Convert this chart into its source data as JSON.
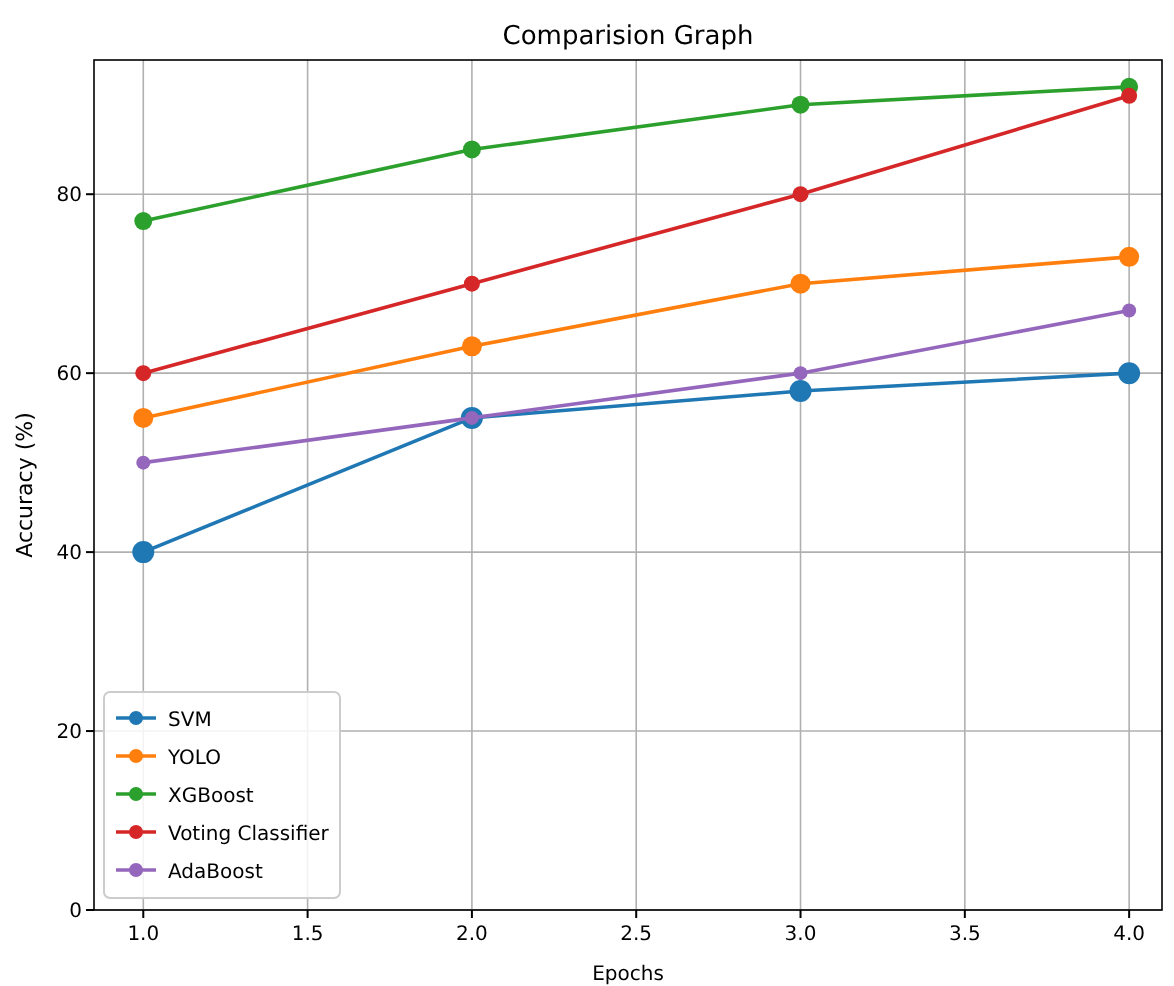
{
  "chart_data": {
    "type": "line",
    "title": "Comparision Graph",
    "xlabel": "Epochs",
    "ylabel": "Accuracy (%)",
    "x": [
      1,
      2,
      3,
      4
    ],
    "series": [
      {
        "name": "SVM",
        "color": "#1f77b4",
        "values": [
          40,
          55,
          58,
          60
        ]
      },
      {
        "name": "YOLO",
        "color": "#ff7f0e",
        "values": [
          55,
          63,
          70,
          73
        ]
      },
      {
        "name": "XGBoost",
        "color": "#2ca02c",
        "values": [
          77,
          85,
          90,
          92
        ]
      },
      {
        "name": "Voting Classifier",
        "color": "#d62728",
        "values": [
          60,
          70,
          80,
          91
        ]
      },
      {
        "name": "AdaBoost",
        "color": "#9467bd",
        "values": [
          50,
          55,
          60,
          67
        ]
      }
    ],
    "xlim": [
      0.85,
      4.1
    ],
    "xticks": [
      {
        "value": 1,
        "label": "1.0"
      },
      1.5,
      {
        "value": 2,
        "label": "2.0"
      },
      2.5,
      {
        "value": 3,
        "label": "3.0"
      },
      3.5,
      {
        "value": 4,
        "label": "4.0"
      }
    ],
    "ylim": [
      0,
      95
    ],
    "yticks": [
      0,
      20,
      40,
      60,
      80
    ],
    "grid": true,
    "legend": "bottom left",
    "marker": "circle",
    "line_style": "solid"
  }
}
